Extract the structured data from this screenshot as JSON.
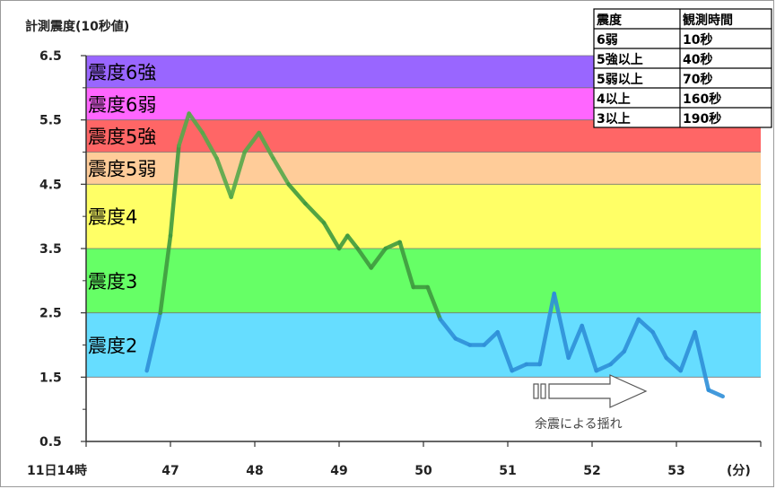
{
  "chart_data": {
    "type": "line",
    "title": "計測震度(10秒値)",
    "x_start_label": "11日14時",
    "x_unit_label": "(分)",
    "xlim": [
      46.0,
      54.0
    ],
    "ylim": [
      0.5,
      6.5
    ],
    "y_ticks": [
      "6.5",
      "5.5",
      "4.5",
      "3.5",
      "2.5",
      "1.5",
      "0.5"
    ],
    "y_tick_values": [
      6.5,
      5.5,
      4.5,
      3.5,
      2.5,
      1.5,
      0.5
    ],
    "x_ticks": [
      "47",
      "48",
      "49",
      "50",
      "51",
      "52",
      "53"
    ],
    "x_tick_values": [
      47,
      48,
      49,
      50,
      51,
      52,
      53
    ],
    "grid": false,
    "bands": [
      {
        "label": "震度6強",
        "from": 6.0,
        "to": 6.5,
        "color": "#9966ff"
      },
      {
        "label": "震度6弱",
        "from": 5.5,
        "to": 6.0,
        "color": "#ff66ff"
      },
      {
        "label": "震度5強",
        "from": 5.0,
        "to": 5.5,
        "color": "#ff6666"
      },
      {
        "label": "震度5弱",
        "from": 4.5,
        "to": 5.0,
        "color": "#ffcc99"
      },
      {
        "label": "震度4",
        "from": 3.5,
        "to": 4.5,
        "color": "#ffff66"
      },
      {
        "label": "震度3",
        "from": 2.5,
        "to": 3.5,
        "color": "#66ff66"
      },
      {
        "label": "震度2",
        "from": 1.5,
        "to": 2.5,
        "color": "#66ddff"
      }
    ],
    "series": [
      {
        "x": [
          46.72,
          46.88,
          47.0,
          47.1,
          47.22,
          47.38,
          47.55,
          47.72,
          47.88,
          48.05,
          48.22,
          48.4,
          48.6,
          48.82,
          49.0,
          49.1,
          49.22,
          49.38,
          49.55,
          49.72,
          49.88,
          50.05,
          50.2,
          50.38,
          50.55,
          50.72,
          50.88,
          51.05,
          51.22,
          51.38,
          51.55,
          51.72,
          51.88,
          52.05,
          52.22,
          52.38,
          52.55,
          52.72,
          52.88,
          53.05,
          53.22,
          53.38,
          53.55
        ],
        "y": [
          1.6,
          2.5,
          3.7,
          5.1,
          5.6,
          5.3,
          4.9,
          4.3,
          5.0,
          5.3,
          4.9,
          4.5,
          4.2,
          3.9,
          3.5,
          3.7,
          3.5,
          3.2,
          3.5,
          3.6,
          2.9,
          2.9,
          2.4,
          2.1,
          2.0,
          2.0,
          2.2,
          1.6,
          1.7,
          1.7,
          2.8,
          1.8,
          2.3,
          1.6,
          1.7,
          1.9,
          2.4,
          2.2,
          1.8,
          1.6,
          2.2,
          1.3,
          1.2
        ]
      }
    ],
    "table": {
      "headers": [
        "震度",
        "観測時間"
      ],
      "rows": [
        [
          "6弱",
          "10秒"
        ],
        [
          "5強以上",
          "40秒"
        ],
        [
          "5弱以上",
          "70秒"
        ],
        [
          "4以上",
          "160秒"
        ],
        [
          "3以上",
          "190秒"
        ]
      ]
    },
    "annotation": "余震による揺れ"
  }
}
